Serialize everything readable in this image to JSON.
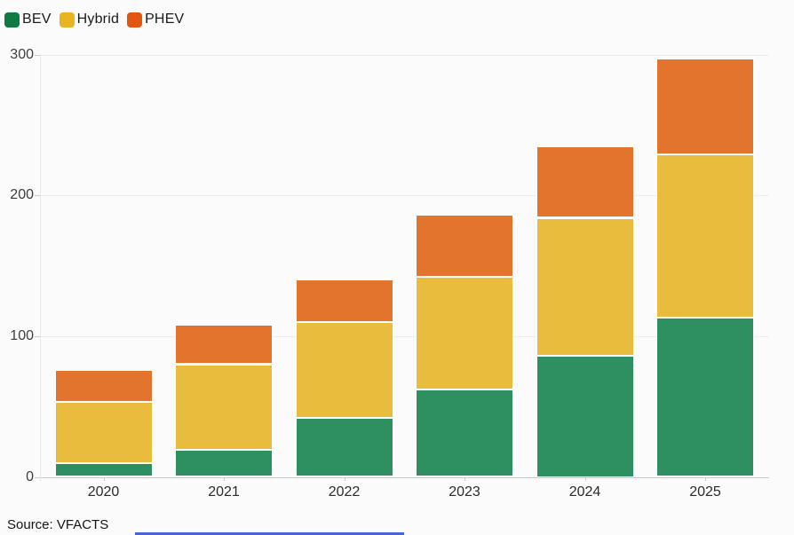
{
  "legend": {
    "items": [
      {
        "label": "BEV",
        "swatch_color": "#107a43"
      },
      {
        "label": "Hybrid",
        "swatch_color": "#e8b420"
      },
      {
        "label": "PHEV",
        "swatch_color": "#e15712"
      }
    ]
  },
  "chart_data": {
    "type": "bar",
    "stacked": true,
    "categories": [
      "2020",
      "2021",
      "2022",
      "2023",
      "2024",
      "2025"
    ],
    "series": [
      {
        "name": "BEV",
        "color": "#2e9061",
        "values": [
          10,
          19,
          42,
          62,
          86,
          113
        ]
      },
      {
        "name": "Hybrid",
        "color": "#eabc3e",
        "values": [
          43,
          61,
          68,
          80,
          98,
          116
        ]
      },
      {
        "name": "PHEV",
        "color": "#e2742e",
        "values": [
          23,
          28,
          30,
          44,
          51,
          68
        ]
      }
    ],
    "totals": [
      76,
      108,
      140,
      186,
      235,
      297
    ],
    "title": "",
    "xlabel": "",
    "ylabel": "",
    "ylim": [
      0,
      300
    ],
    "yticks": [
      0,
      100,
      200,
      300
    ],
    "grid": "horizontal",
    "legend_position": "top-left"
  },
  "footer": {
    "source": "Source: VFACTS"
  },
  "colors": {
    "background": "#fbfbfb",
    "gridline": "#ededed",
    "axis_baseline": "#c9c9c9",
    "bottom_strip_blue": "#4565d9"
  }
}
